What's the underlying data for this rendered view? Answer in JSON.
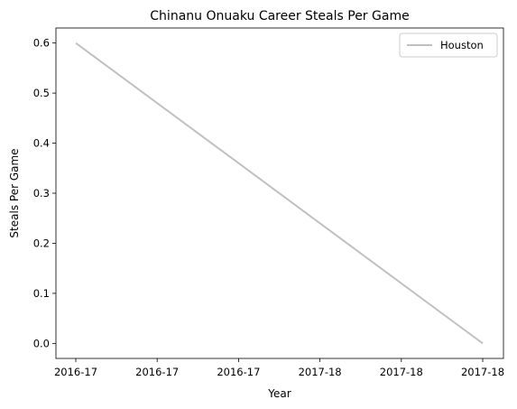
{
  "chart_data": {
    "type": "line",
    "title": "Chinanu Onuaku Career Steals Per Game",
    "xlabel": "Year",
    "ylabel": "Steals Per Game",
    "x_tick_labels": [
      "2016-17",
      "2016-17",
      "2016-17",
      "2017-18",
      "2017-18",
      "2017-18"
    ],
    "x": [
      "2016-17",
      "2017-18"
    ],
    "series": [
      {
        "name": "Houston",
        "color": "#c0c0c0",
        "values": [
          0.6,
          0.0
        ]
      }
    ],
    "ylim": [
      -0.03,
      0.63
    ],
    "y_ticks": [
      0.0,
      0.1,
      0.2,
      0.3,
      0.4,
      0.5,
      0.6
    ],
    "y_tick_labels": [
      "0.0",
      "0.1",
      "0.2",
      "0.3",
      "0.4",
      "0.5",
      "0.6"
    ],
    "grid": false,
    "legend_position": "top-right"
  }
}
